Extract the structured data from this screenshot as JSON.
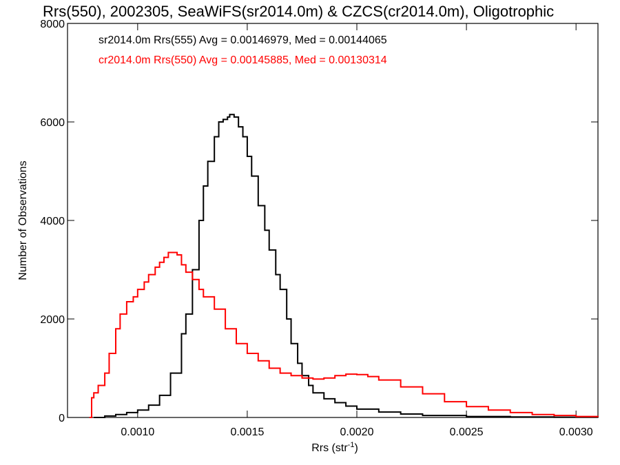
{
  "chart_data": {
    "type": "line",
    "title": "Rrs(550), 2002305, SeaWiFS(sr2014.0m) & CZCS(cr2014.0m), Oligotrophic",
    "xlabel_main": "Rrs (str",
    "xlabel_sup": "-1",
    "xlabel_tail": ")",
    "ylabel": "Number of Observations",
    "xlim": [
      0.00068,
      0.0031
    ],
    "ylim": [
      0,
      8000
    ],
    "grid": false,
    "x_ticks": [
      {
        "value": 0.001,
        "label": "0.0010"
      },
      {
        "value": 0.0015,
        "label": "0.0015"
      },
      {
        "value": 0.002,
        "label": "0.0020"
      },
      {
        "value": 0.0025,
        "label": "0.0025"
      },
      {
        "value": 0.003,
        "label": "0.0030"
      }
    ],
    "y_ticks": [
      {
        "value": 0,
        "label": "0"
      },
      {
        "value": 2000,
        "label": "2000"
      },
      {
        "value": 4000,
        "label": "4000"
      },
      {
        "value": 6000,
        "label": "6000"
      },
      {
        "value": 8000,
        "label": "8000"
      }
    ],
    "series": [
      {
        "name": "sr2014.0m Rrs(555) Avg = 0.00146979, Med = 0.00144065",
        "color": "#000000",
        "x": [
          0.0008,
          0.00085,
          0.0009,
          0.00095,
          0.001,
          0.00105,
          0.0011,
          0.00115,
          0.0012,
          0.00122,
          0.00125,
          0.00128,
          0.0013,
          0.00132,
          0.00135,
          0.00137,
          0.00139,
          0.00141,
          0.00142,
          0.00144,
          0.00146,
          0.00148,
          0.0015,
          0.00152,
          0.00155,
          0.00158,
          0.0016,
          0.00163,
          0.00165,
          0.00168,
          0.0017,
          0.00173,
          0.00175,
          0.00178,
          0.0018,
          0.00185,
          0.0019,
          0.00195,
          0.002,
          0.0021,
          0.0022,
          0.0023,
          0.0025,
          0.0027,
          0.0029,
          0.0031
        ],
        "y": [
          0,
          30,
          60,
          100,
          150,
          250,
          450,
          900,
          1700,
          2100,
          3000,
          4000,
          4700,
          5200,
          5700,
          6000,
          6050,
          6100,
          6150,
          6100,
          5900,
          5700,
          5300,
          4900,
          4300,
          3800,
          3400,
          2900,
          2600,
          2000,
          1500,
          1100,
          850,
          650,
          500,
          380,
          300,
          230,
          170,
          110,
          70,
          40,
          20,
          10,
          5,
          0
        ]
      },
      {
        "name": "cr2014.0m Rrs(550) Avg = 0.00145885, Med = 0.00130314",
        "color": "#ff0000",
        "x": [
          0.00078,
          0.00079,
          0.0008,
          0.00082,
          0.00085,
          0.00087,
          0.0009,
          0.00092,
          0.00095,
          0.00098,
          0.001,
          0.00103,
          0.00105,
          0.00108,
          0.0011,
          0.00112,
          0.00114,
          0.00116,
          0.00118,
          0.0012,
          0.00122,
          0.00125,
          0.00128,
          0.0013,
          0.00135,
          0.0014,
          0.00145,
          0.0015,
          0.00155,
          0.0016,
          0.00165,
          0.0017,
          0.00175,
          0.0018,
          0.00185,
          0.0019,
          0.00195,
          0.002,
          0.00205,
          0.0021,
          0.0022,
          0.0023,
          0.0024,
          0.0025,
          0.0026,
          0.0027,
          0.0028,
          0.0029,
          0.003,
          0.0031
        ],
        "y": [
          0,
          400,
          500,
          650,
          900,
          1300,
          1800,
          2100,
          2350,
          2450,
          2600,
          2750,
          2900,
          3050,
          3150,
          3250,
          3350,
          3350,
          3300,
          3100,
          2950,
          2800,
          2600,
          2450,
          2200,
          1800,
          1500,
          1300,
          1150,
          1000,
          900,
          850,
          800,
          780,
          800,
          850,
          880,
          870,
          830,
          760,
          620,
          480,
          320,
          220,
          150,
          100,
          60,
          40,
          20,
          10
        ]
      }
    ]
  }
}
